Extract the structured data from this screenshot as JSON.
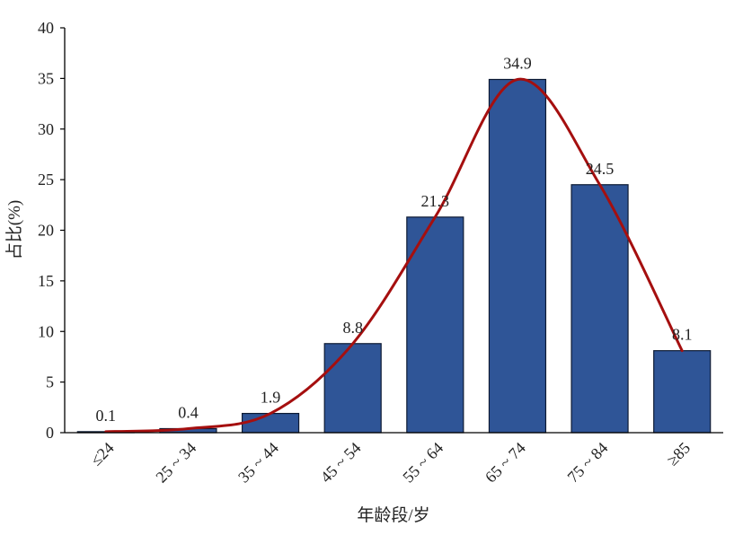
{
  "chart_data": {
    "type": "bar",
    "title": "",
    "xlabel": "年龄段/岁",
    "ylabel": "占比(%)",
    "categories": [
      "≤24",
      "25 ~ 34",
      "35 ~ 44",
      "45 ~ 54",
      "55 ~ 64",
      "65 ~ 74",
      "75 ~ 84",
      "≥85"
    ],
    "values": [
      0.1,
      0.4,
      1.9,
      8.8,
      21.3,
      34.9,
      24.5,
      8.1
    ],
    "data_labels": [
      "0.1",
      "0.4",
      "1.9",
      "8.8",
      "21.3",
      "34.9",
      "24.5",
      "8.1"
    ],
    "ylim": [
      0,
      40
    ],
    "yticks": [
      "0",
      "5",
      "10",
      "15",
      "20",
      "25",
      "30",
      "35",
      "40"
    ],
    "grid": false,
    "legend": "none",
    "overlay": {
      "type": "line",
      "smooth": true,
      "values": [
        0.1,
        0.4,
        1.9,
        8.8,
        21.3,
        34.9,
        24.5,
        8.1
      ]
    },
    "colors": {
      "bar_fill": "#2F5597",
      "bar_stroke": "#0d1a33",
      "curve": "#A50F0F",
      "axis": "#000000"
    }
  }
}
